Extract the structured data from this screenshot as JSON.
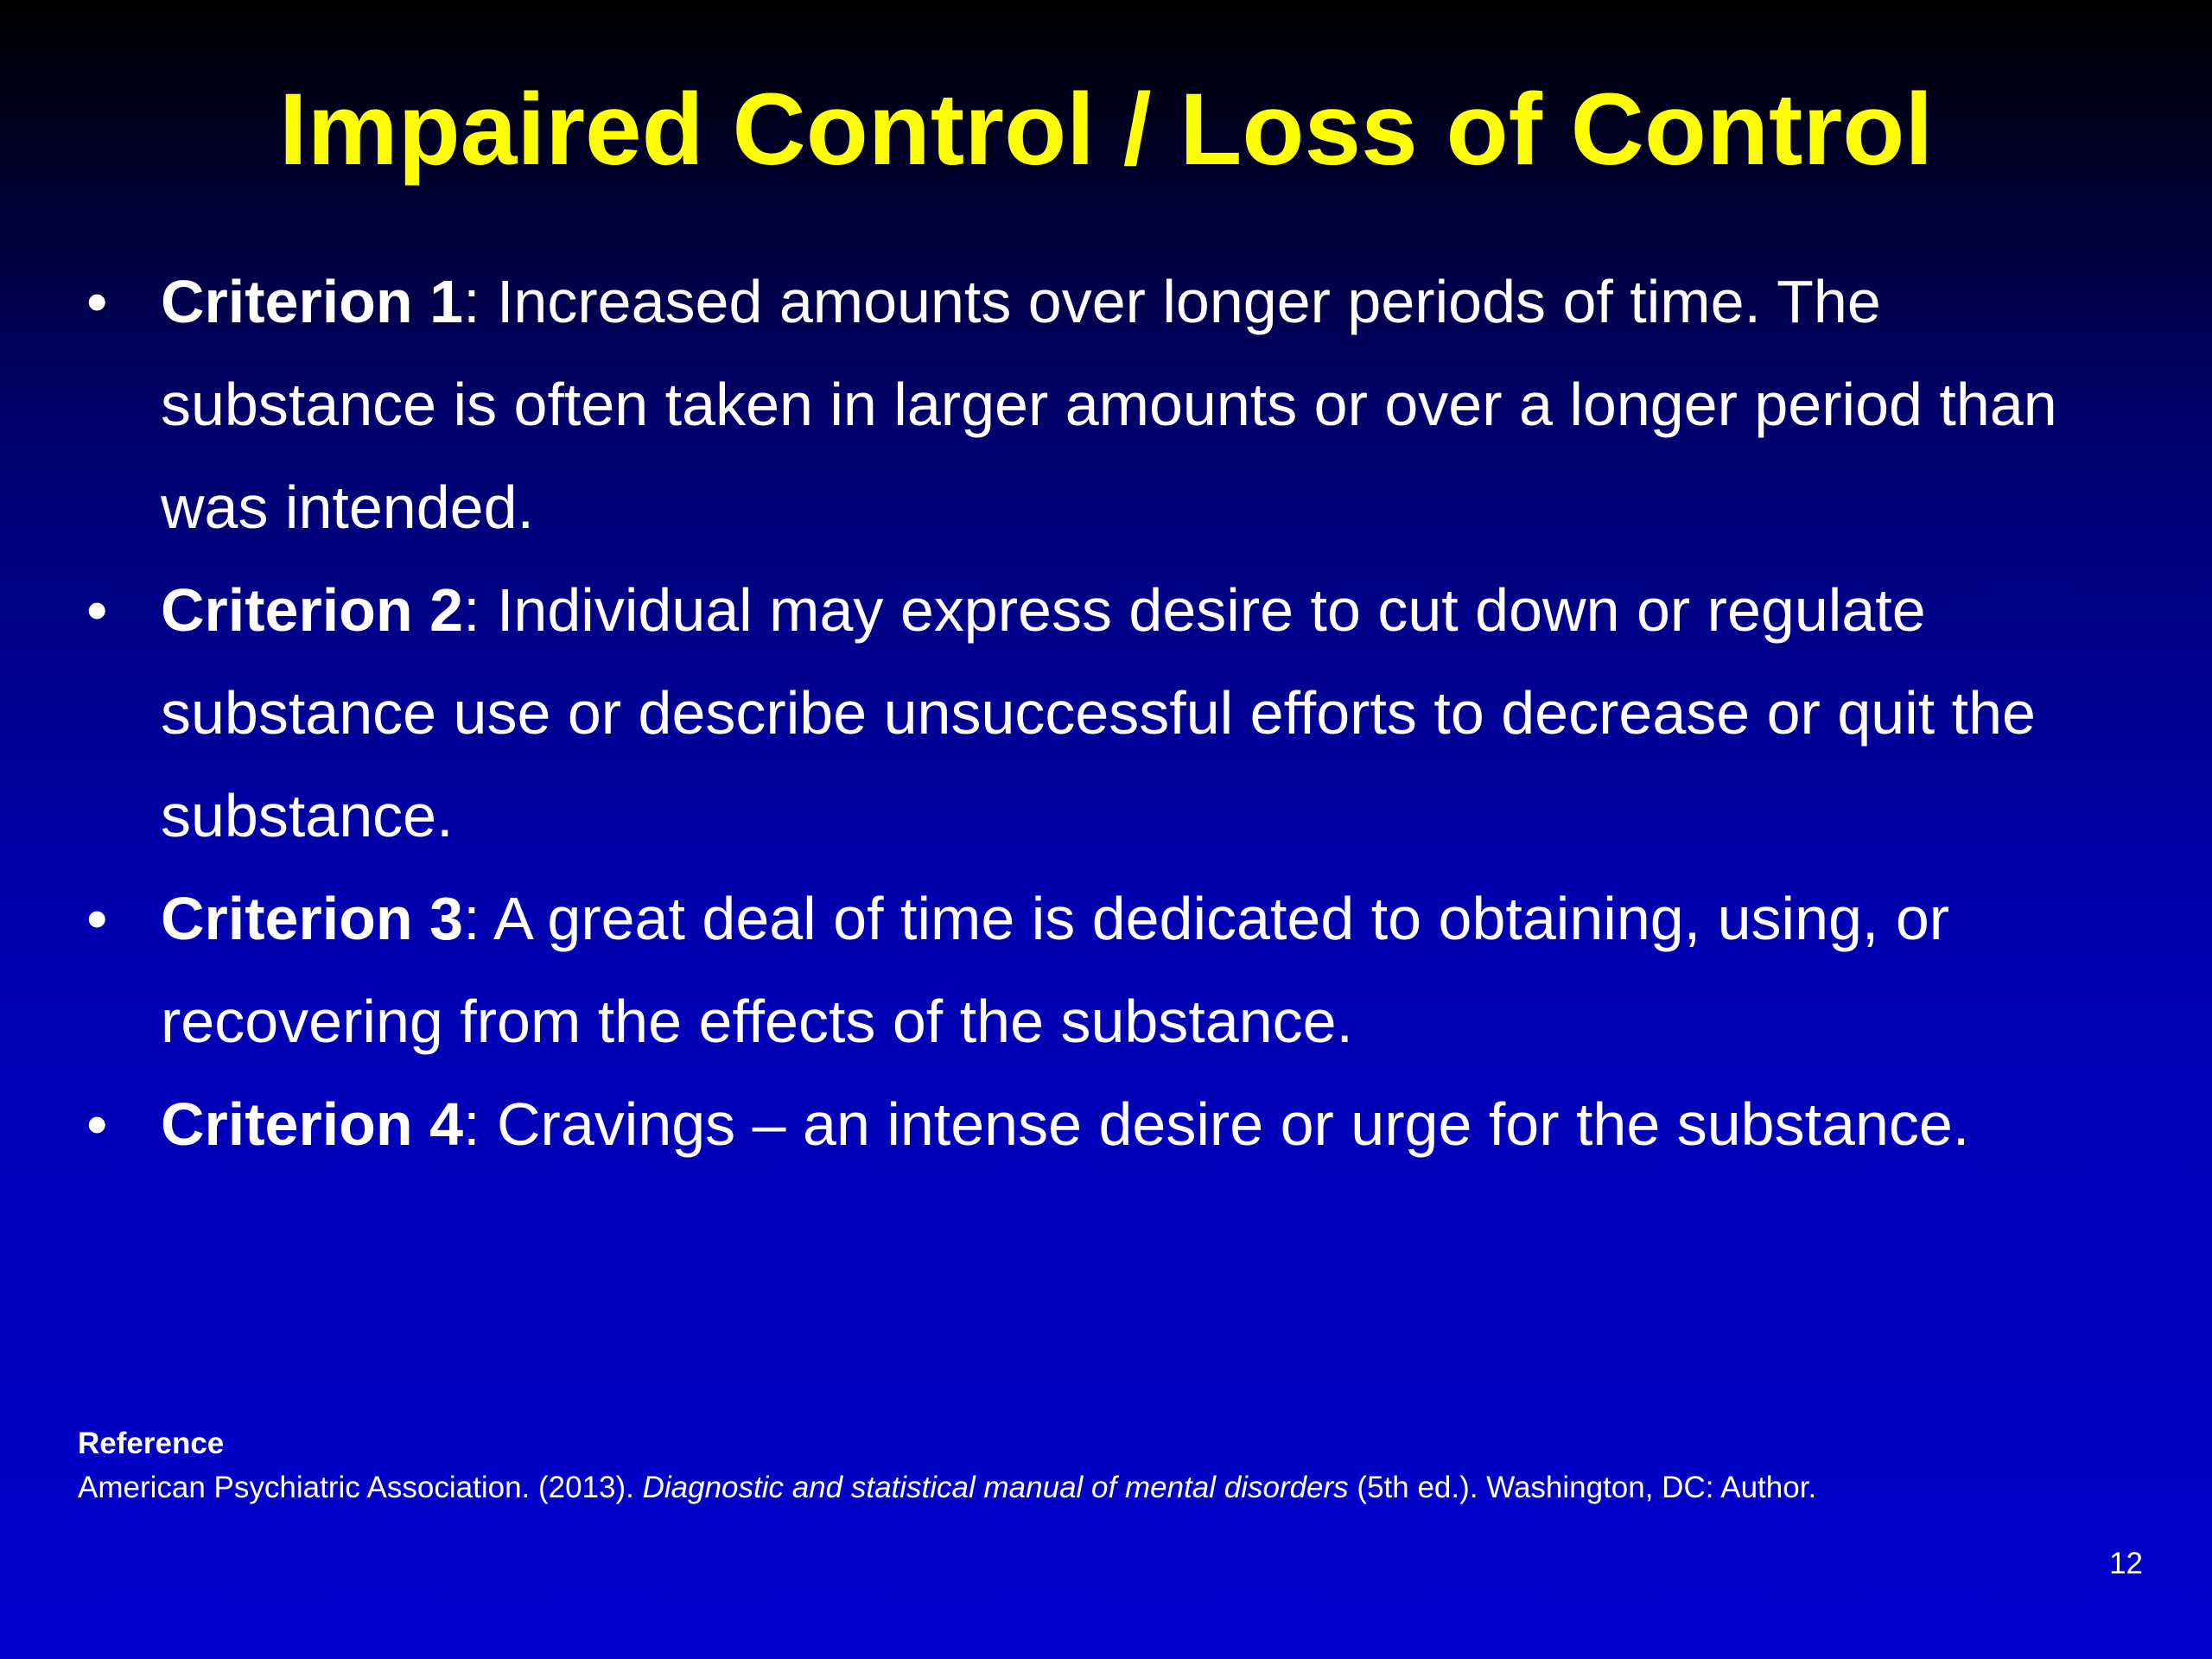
{
  "title": "Impaired Control / Loss of Control",
  "bullets": [
    {
      "label": "Criterion 1",
      "text": ": Increased amounts over longer periods of time. The substance is often taken in larger amounts or over a longer period than was intended."
    },
    {
      "label": "Criterion 2",
      "text": ": Individual may express desire to cut down or regulate substance use or describe unsuccessful efforts to decrease or quit the substance."
    },
    {
      "label": "Criterion 3",
      "text": ": A great deal of time is dedicated to obtaining, using, or recovering from the effects of the substance."
    },
    {
      "label": "Criterion 4",
      "text": ": Cravings – an intense desire or urge for the substance."
    }
  ],
  "reference": {
    "heading": "Reference",
    "before": "American Psychiatric Association. (2013). ",
    "italic": "Diagnostic and statistical manual of mental disorders",
    "after": " (5th ed.). Washington, DC: Author."
  },
  "page_number": "12"
}
